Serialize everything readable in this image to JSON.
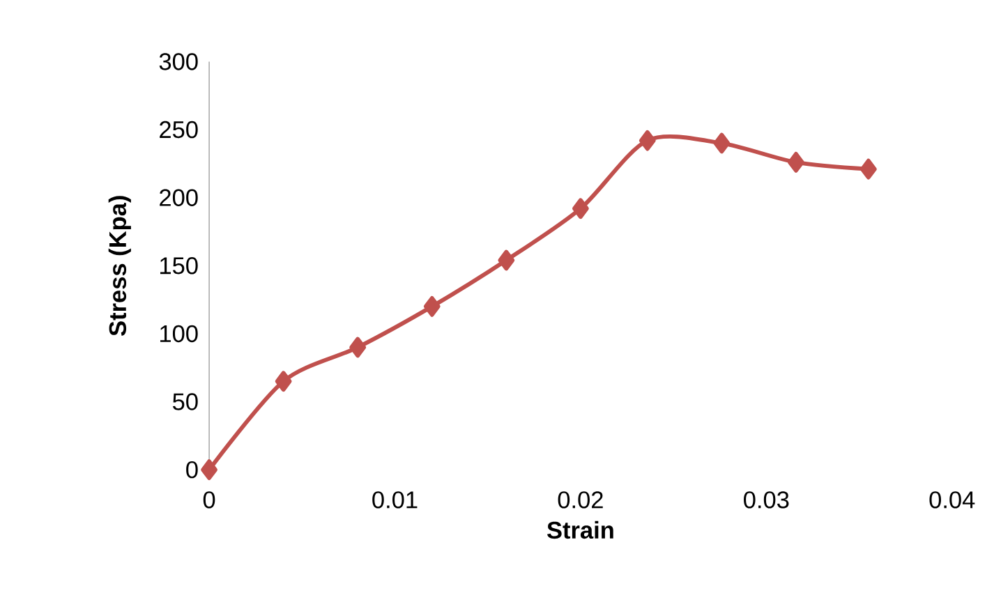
{
  "chart_data": {
    "type": "line",
    "xlabel": "Strain",
    "ylabel": "Stress (Kpa)",
    "series": [
      {
        "color": "#c0504d",
        "x": [
          0,
          0.004,
          0.008,
          0.012,
          0.016,
          0.02,
          0.0236,
          0.0276,
          0.0316,
          0.0355
        ],
        "values": [
          0,
          65,
          90,
          120,
          154,
          192,
          242,
          240,
          226,
          221
        ]
      }
    ],
    "xlim": [
      0,
      0.04
    ],
    "xticks": [
      0,
      0.01,
      0.02,
      0.03,
      0.04
    ],
    "ylim": [
      0,
      300
    ],
    "yticks": [
      0,
      50,
      100,
      150,
      200,
      250,
      300
    ],
    "marker": "diamond",
    "line_style": "solid",
    "grid": false
  }
}
